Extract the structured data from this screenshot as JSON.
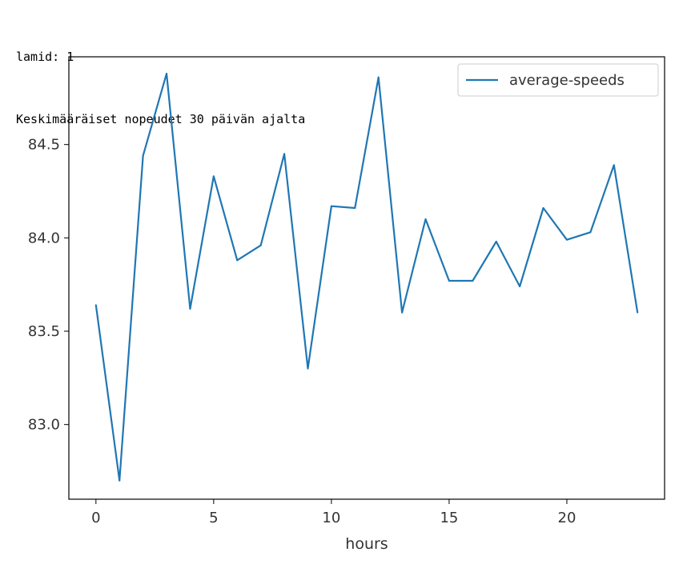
{
  "output": {
    "line1": "lamid: 1",
    "line2": "Keskimääräiset nopeudet 30 päivän ajalta"
  },
  "colors": {
    "series": "#1f77b4",
    "axis": "#000000",
    "text": "#333333",
    "legend_border": "#cccccc"
  },
  "chart_data": {
    "type": "line",
    "title": "",
    "xlabel": "hours",
    "ylabel": "",
    "xlim": [
      -1.15,
      24.15
    ],
    "ylim": [
      82.6,
      84.97
    ],
    "xticks": [
      0,
      5,
      10,
      15,
      20
    ],
    "xtick_labels": [
      "0",
      "5",
      "10",
      "15",
      "20"
    ],
    "yticks": [
      83.0,
      83.5,
      84.0,
      84.5
    ],
    "ytick_labels": [
      "83.0",
      "83.5",
      "84.0",
      "84.5"
    ],
    "grid": false,
    "legend": {
      "position": "top-right",
      "entries": [
        "average-speeds"
      ]
    },
    "series": [
      {
        "name": "average-speeds",
        "x": [
          0,
          1,
          2,
          3,
          4,
          5,
          6,
          7,
          8,
          9,
          10,
          11,
          12,
          13,
          14,
          15,
          16,
          17,
          18,
          19,
          20,
          21,
          22,
          23
        ],
        "values": [
          83.64,
          82.7,
          84.44,
          84.88,
          83.62,
          84.33,
          83.88,
          83.96,
          84.45,
          83.3,
          84.17,
          84.16,
          84.86,
          83.6,
          84.1,
          83.77,
          83.77,
          83.98,
          83.74,
          84.16,
          83.99,
          84.03,
          84.39,
          83.6
        ]
      }
    ]
  }
}
